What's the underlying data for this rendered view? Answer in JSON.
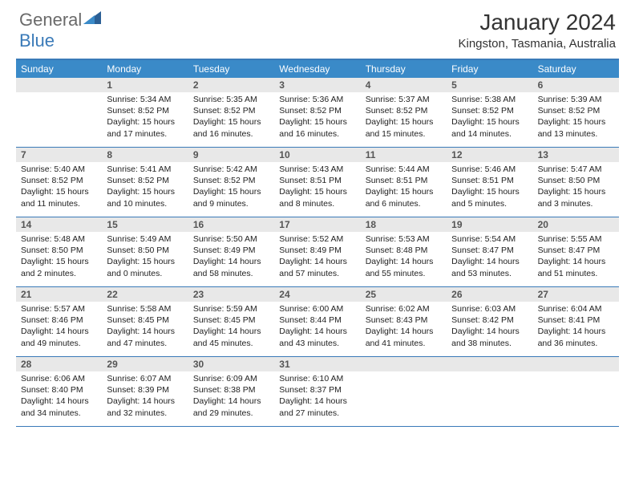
{
  "logo": {
    "part1": "General",
    "part2": "Blue"
  },
  "title": "January 2024",
  "location": "Kingston, Tasmania, Australia",
  "dayNames": [
    "Sunday",
    "Monday",
    "Tuesday",
    "Wednesday",
    "Thursday",
    "Friday",
    "Saturday"
  ],
  "colors": {
    "headerBar": "#3a8ac8",
    "accentLine": "#3a7ab8",
    "dayNumBg": "#e8e8e8",
    "logoGray": "#6a6a6a",
    "logoBlue": "#3a7ab8"
  },
  "weeks": [
    [
      {
        "day": "",
        "sunrise": "",
        "sunset": "",
        "daylight": ""
      },
      {
        "day": "1",
        "sunrise": "Sunrise: 5:34 AM",
        "sunset": "Sunset: 8:52 PM",
        "daylight": "Daylight: 15 hours and 17 minutes."
      },
      {
        "day": "2",
        "sunrise": "Sunrise: 5:35 AM",
        "sunset": "Sunset: 8:52 PM",
        "daylight": "Daylight: 15 hours and 16 minutes."
      },
      {
        "day": "3",
        "sunrise": "Sunrise: 5:36 AM",
        "sunset": "Sunset: 8:52 PM",
        "daylight": "Daylight: 15 hours and 16 minutes."
      },
      {
        "day": "4",
        "sunrise": "Sunrise: 5:37 AM",
        "sunset": "Sunset: 8:52 PM",
        "daylight": "Daylight: 15 hours and 15 minutes."
      },
      {
        "day": "5",
        "sunrise": "Sunrise: 5:38 AM",
        "sunset": "Sunset: 8:52 PM",
        "daylight": "Daylight: 15 hours and 14 minutes."
      },
      {
        "day": "6",
        "sunrise": "Sunrise: 5:39 AM",
        "sunset": "Sunset: 8:52 PM",
        "daylight": "Daylight: 15 hours and 13 minutes."
      }
    ],
    [
      {
        "day": "7",
        "sunrise": "Sunrise: 5:40 AM",
        "sunset": "Sunset: 8:52 PM",
        "daylight": "Daylight: 15 hours and 11 minutes."
      },
      {
        "day": "8",
        "sunrise": "Sunrise: 5:41 AM",
        "sunset": "Sunset: 8:52 PM",
        "daylight": "Daylight: 15 hours and 10 minutes."
      },
      {
        "day": "9",
        "sunrise": "Sunrise: 5:42 AM",
        "sunset": "Sunset: 8:52 PM",
        "daylight": "Daylight: 15 hours and 9 minutes."
      },
      {
        "day": "10",
        "sunrise": "Sunrise: 5:43 AM",
        "sunset": "Sunset: 8:51 PM",
        "daylight": "Daylight: 15 hours and 8 minutes."
      },
      {
        "day": "11",
        "sunrise": "Sunrise: 5:44 AM",
        "sunset": "Sunset: 8:51 PM",
        "daylight": "Daylight: 15 hours and 6 minutes."
      },
      {
        "day": "12",
        "sunrise": "Sunrise: 5:46 AM",
        "sunset": "Sunset: 8:51 PM",
        "daylight": "Daylight: 15 hours and 5 minutes."
      },
      {
        "day": "13",
        "sunrise": "Sunrise: 5:47 AM",
        "sunset": "Sunset: 8:50 PM",
        "daylight": "Daylight: 15 hours and 3 minutes."
      }
    ],
    [
      {
        "day": "14",
        "sunrise": "Sunrise: 5:48 AM",
        "sunset": "Sunset: 8:50 PM",
        "daylight": "Daylight: 15 hours and 2 minutes."
      },
      {
        "day": "15",
        "sunrise": "Sunrise: 5:49 AM",
        "sunset": "Sunset: 8:50 PM",
        "daylight": "Daylight: 15 hours and 0 minutes."
      },
      {
        "day": "16",
        "sunrise": "Sunrise: 5:50 AM",
        "sunset": "Sunset: 8:49 PM",
        "daylight": "Daylight: 14 hours and 58 minutes."
      },
      {
        "day": "17",
        "sunrise": "Sunrise: 5:52 AM",
        "sunset": "Sunset: 8:49 PM",
        "daylight": "Daylight: 14 hours and 57 minutes."
      },
      {
        "day": "18",
        "sunrise": "Sunrise: 5:53 AM",
        "sunset": "Sunset: 8:48 PM",
        "daylight": "Daylight: 14 hours and 55 minutes."
      },
      {
        "day": "19",
        "sunrise": "Sunrise: 5:54 AM",
        "sunset": "Sunset: 8:47 PM",
        "daylight": "Daylight: 14 hours and 53 minutes."
      },
      {
        "day": "20",
        "sunrise": "Sunrise: 5:55 AM",
        "sunset": "Sunset: 8:47 PM",
        "daylight": "Daylight: 14 hours and 51 minutes."
      }
    ],
    [
      {
        "day": "21",
        "sunrise": "Sunrise: 5:57 AM",
        "sunset": "Sunset: 8:46 PM",
        "daylight": "Daylight: 14 hours and 49 minutes."
      },
      {
        "day": "22",
        "sunrise": "Sunrise: 5:58 AM",
        "sunset": "Sunset: 8:45 PM",
        "daylight": "Daylight: 14 hours and 47 minutes."
      },
      {
        "day": "23",
        "sunrise": "Sunrise: 5:59 AM",
        "sunset": "Sunset: 8:45 PM",
        "daylight": "Daylight: 14 hours and 45 minutes."
      },
      {
        "day": "24",
        "sunrise": "Sunrise: 6:00 AM",
        "sunset": "Sunset: 8:44 PM",
        "daylight": "Daylight: 14 hours and 43 minutes."
      },
      {
        "day": "25",
        "sunrise": "Sunrise: 6:02 AM",
        "sunset": "Sunset: 8:43 PM",
        "daylight": "Daylight: 14 hours and 41 minutes."
      },
      {
        "day": "26",
        "sunrise": "Sunrise: 6:03 AM",
        "sunset": "Sunset: 8:42 PM",
        "daylight": "Daylight: 14 hours and 38 minutes."
      },
      {
        "day": "27",
        "sunrise": "Sunrise: 6:04 AM",
        "sunset": "Sunset: 8:41 PM",
        "daylight": "Daylight: 14 hours and 36 minutes."
      }
    ],
    [
      {
        "day": "28",
        "sunrise": "Sunrise: 6:06 AM",
        "sunset": "Sunset: 8:40 PM",
        "daylight": "Daylight: 14 hours and 34 minutes."
      },
      {
        "day": "29",
        "sunrise": "Sunrise: 6:07 AM",
        "sunset": "Sunset: 8:39 PM",
        "daylight": "Daylight: 14 hours and 32 minutes."
      },
      {
        "day": "30",
        "sunrise": "Sunrise: 6:09 AM",
        "sunset": "Sunset: 8:38 PM",
        "daylight": "Daylight: 14 hours and 29 minutes."
      },
      {
        "day": "31",
        "sunrise": "Sunrise: 6:10 AM",
        "sunset": "Sunset: 8:37 PM",
        "daylight": "Daylight: 14 hours and 27 minutes."
      },
      {
        "day": "",
        "sunrise": "",
        "sunset": "",
        "daylight": ""
      },
      {
        "day": "",
        "sunrise": "",
        "sunset": "",
        "daylight": ""
      },
      {
        "day": "",
        "sunrise": "",
        "sunset": "",
        "daylight": ""
      }
    ]
  ]
}
